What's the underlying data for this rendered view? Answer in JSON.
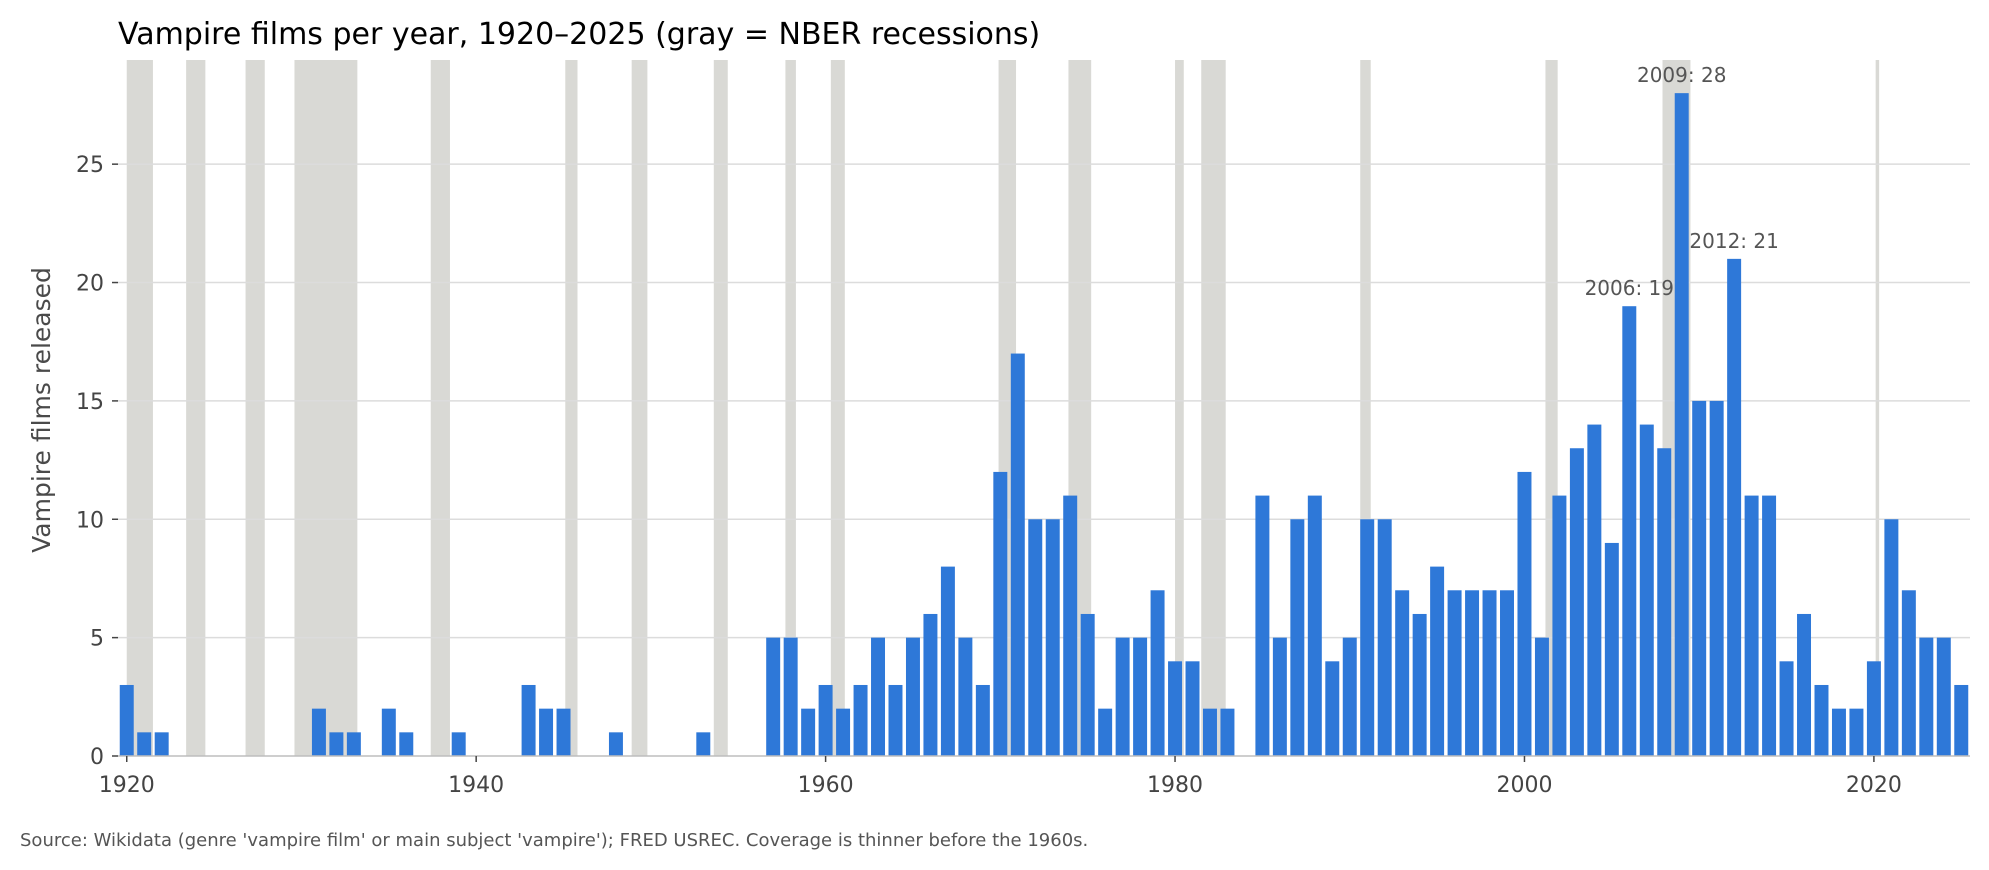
{
  "chart_data": {
    "type": "bar",
    "title": "Vampire films per year, 1920–2025 (gray = NBER recessions)",
    "xlabel": "",
    "ylabel": "Vampire films released",
    "xlim": [
      1920,
      2025
    ],
    "ylim": [
      0,
      29.4
    ],
    "x_ticks": [
      1920,
      1940,
      1960,
      1980,
      2000,
      2020
    ],
    "y_ticks": [
      0,
      5,
      10,
      15,
      20,
      25
    ],
    "grid": "horizontal",
    "bar_color": "#2e78d8",
    "recession_color": "#d9d9d5",
    "source_note": "Source: Wikidata (genre 'vampire film' or main subject 'vampire'); FRED USREC. Coverage is thinner before the 1960s.",
    "recessions": [
      {
        "start": 1920.0,
        "end": 1921.5
      },
      {
        "start": 1923.4,
        "end": 1924.5
      },
      {
        "start": 1926.8,
        "end": 1927.9
      },
      {
        "start": 1929.6,
        "end": 1933.2
      },
      {
        "start": 1937.4,
        "end": 1938.5
      },
      {
        "start": 1945.1,
        "end": 1945.8
      },
      {
        "start": 1948.9,
        "end": 1949.8
      },
      {
        "start": 1953.6,
        "end": 1954.4
      },
      {
        "start": 1957.7,
        "end": 1958.3
      },
      {
        "start": 1960.3,
        "end": 1961.1
      },
      {
        "start": 1969.9,
        "end": 1970.9
      },
      {
        "start": 1973.9,
        "end": 1975.2
      },
      {
        "start": 1980.0,
        "end": 1980.5
      },
      {
        "start": 1981.5,
        "end": 1982.9
      },
      {
        "start": 1990.6,
        "end": 1991.2
      },
      {
        "start": 2001.2,
        "end": 2001.9
      },
      {
        "start": 2007.9,
        "end": 2009.5
      },
      {
        "start": 2020.1,
        "end": 2020.3
      }
    ],
    "series": [
      {
        "x": [
          1920,
          1921,
          1922,
          1923,
          1924,
          1925,
          1926,
          1927,
          1928,
          1929,
          1930,
          1931,
          1932,
          1933,
          1934,
          1935,
          1936,
          1937,
          1938,
          1939,
          1940,
          1941,
          1942,
          1943,
          1944,
          1945,
          1946,
          1947,
          1948,
          1949,
          1950,
          1951,
          1952,
          1953,
          1954,
          1955,
          1956,
          1957,
          1958,
          1959,
          1960,
          1961,
          1962,
          1963,
          1964,
          1965,
          1966,
          1967,
          1968,
          1969,
          1970,
          1971,
          1972,
          1973,
          1974,
          1975,
          1976,
          1977,
          1978,
          1979,
          1980,
          1981,
          1982,
          1983,
          1984,
          1985,
          1986,
          1987,
          1988,
          1989,
          1990,
          1991,
          1992,
          1993,
          1994,
          1995,
          1996,
          1997,
          1998,
          1999,
          2000,
          2001,
          2002,
          2003,
          2004,
          2005,
          2006,
          2007,
          2008,
          2009,
          2010,
          2011,
          2012,
          2013,
          2014,
          2015,
          2016,
          2017,
          2018,
          2019,
          2020,
          2021,
          2022,
          2023,
          2024,
          2025
        ],
        "values": [
          3,
          1,
          1,
          0,
          0,
          0,
          0,
          0,
          0,
          0,
          0,
          2,
          1,
          1,
          0,
          2,
          1,
          0,
          0,
          1,
          0,
          0,
          0,
          3,
          2,
          2,
          0,
          0,
          1,
          0,
          0,
          0,
          0,
          1,
          0,
          0,
          0,
          5,
          5,
          2,
          3,
          2,
          3,
          5,
          3,
          5,
          6,
          8,
          5,
          3,
          12,
          17,
          10,
          10,
          11,
          6,
          2,
          5,
          5,
          7,
          4,
          4,
          2,
          2,
          0,
          11,
          5,
          10,
          11,
          4,
          5,
          10,
          10,
          7,
          6,
          8,
          7,
          7,
          7,
          7,
          12,
          5,
          11,
          13,
          14,
          9,
          19,
          14,
          13,
          28,
          15,
          15,
          21,
          11,
          11,
          4,
          6,
          3,
          2,
          2,
          4,
          10,
          7,
          5,
          5,
          3
        ]
      }
    ],
    "annotations": [
      {
        "year": 2006,
        "value": 19,
        "text": "2006: 19"
      },
      {
        "year": 2009,
        "value": 28,
        "text": "2009: 28"
      },
      {
        "year": 2012,
        "value": 21,
        "text": "2012: 21"
      }
    ]
  }
}
